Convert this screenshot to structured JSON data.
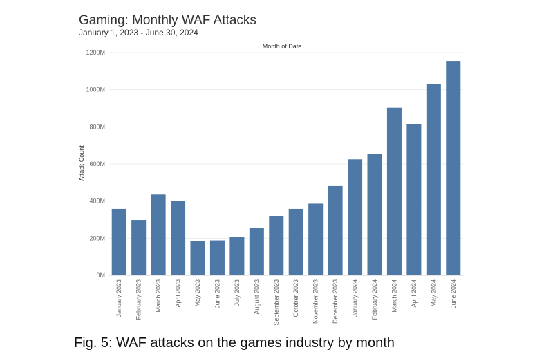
{
  "title": "Gaming: Monthly WAF Attacks",
  "subtitle": "January 1, 2023 - June 30, 2024",
  "caption": "Fig. 5: WAF attacks on the games industry by month",
  "colors": {
    "bar": "#4e79a7",
    "grid": "#ededed",
    "axis": "#cccccc"
  },
  "chart_data": {
    "type": "bar",
    "column_header": "Month of Date",
    "ylabel": "Attack Count",
    "ylim": [
      0,
      1200000000
    ],
    "yticks": [
      0,
      200000000,
      400000000,
      600000000,
      800000000,
      1000000000,
      1200000000
    ],
    "ytick_labels": [
      "0M",
      "200M",
      "400M",
      "600M",
      "800M",
      "1000M",
      "1200M"
    ],
    "grid": true,
    "categories": [
      "January 2023",
      "February 2023",
      "March 2023",
      "April 2023",
      "May 2023",
      "June 2023",
      "July 2023",
      "August 2023",
      "September 2023",
      "October 2023",
      "November 2023",
      "December 2023",
      "January 2024",
      "February 2024",
      "March 2024",
      "April 2024",
      "May 2024",
      "June 2024"
    ],
    "values": [
      358000000,
      298000000,
      435000000,
      400000000,
      185000000,
      188000000,
      207000000,
      257000000,
      318000000,
      358000000,
      386000000,
      481000000,
      625000000,
      654000000,
      903000000,
      815000000,
      1030000000,
      1155000000
    ]
  }
}
